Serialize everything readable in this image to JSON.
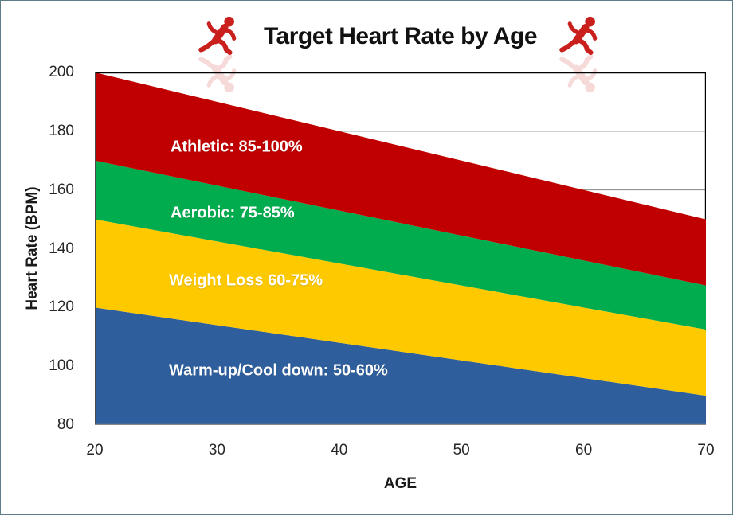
{
  "window": {
    "border_color": "#5E7B88",
    "background": "#FFFFFF"
  },
  "header": {
    "title": "Target Heart Rate by Age",
    "icon": "red-sprinter-icon",
    "icon_color": "#C9201D"
  },
  "chart_data": {
    "type": "area",
    "title": "Target Heart Rate by Age",
    "xlabel": "AGE",
    "ylabel": "Heart Rate (BPM)",
    "xlim": [
      20,
      70
    ],
    "ylim": [
      80,
      200
    ],
    "x_ticks": [
      "20",
      "30",
      "40",
      "50",
      "60",
      "70"
    ],
    "y_ticks": [
      "200",
      "180",
      "160",
      "140",
      "120",
      "100",
      "80"
    ],
    "grid": true,
    "gridlines_bpm": [
      180,
      160,
      140,
      120,
      100
    ],
    "grid_color": "#848484",
    "border_colors": {
      "top": "#000000",
      "right": "#000000",
      "left": "#4A4A4A",
      "bottom": "#8A8A8A"
    },
    "x": [
      20,
      70
    ],
    "series": [
      {
        "name": "Warm-up/Cool down: 50-60%",
        "zone": "warmup",
        "color": "#2E5F9C",
        "upper": [
          120,
          90
        ],
        "lower": [
          80,
          80
        ]
      },
      {
        "name": "Weight Loss 60-75%",
        "zone": "weightloss",
        "color": "#FFC900",
        "upper": [
          150,
          112.5
        ],
        "lower": [
          120,
          90
        ]
      },
      {
        "name": "Aerobic: 75-85%",
        "zone": "aerobic",
        "color": "#00AC4E",
        "upper": [
          170,
          127.5
        ],
        "lower": [
          150,
          112.5
        ]
      },
      {
        "name": "Athletic: 85-100%",
        "zone": "athletic",
        "color": "#C00000",
        "upper": [
          200,
          150
        ],
        "lower": [
          170,
          127.5
        ]
      }
    ],
    "legend_position": "labels-inside-bands"
  }
}
